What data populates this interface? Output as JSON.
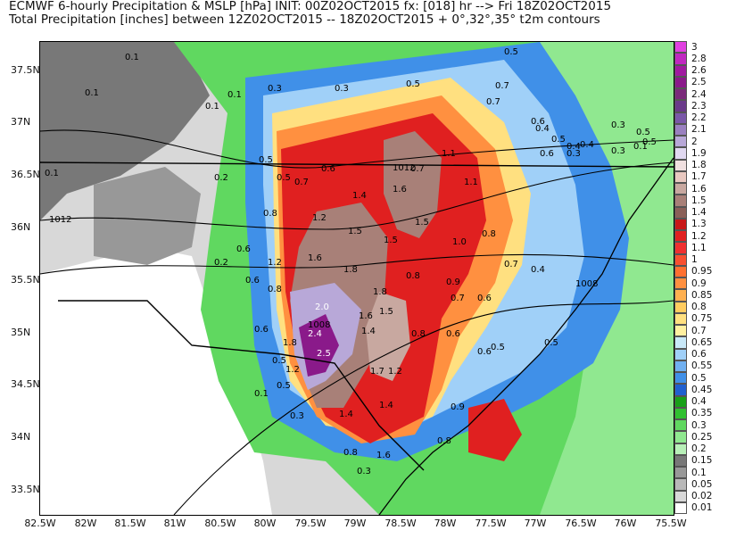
{
  "header": {
    "line1": "ECMWF 6-hourly Precipitation & MSLP [hPa] INIT: 00Z02OCT2015 fx: [018] hr --> Fri 18Z02OCT2015",
    "line2": "Total Precipitation [inches] between 12Z02OCT2015 -- 18Z02OCT2015   + 0°,32°,35° t2m contours"
  },
  "axes": {
    "lat_labels": [
      "37.5N",
      "37N",
      "36.5N",
      "36N",
      "35.5N",
      "35N",
      "34.5N",
      "34N",
      "33.5N"
    ],
    "lon_labels": [
      "82.5W",
      "82W",
      "81.5W",
      "81W",
      "80.5W",
      "80W",
      "79.5W",
      "79W",
      "78.5W",
      "78W",
      "77.5W",
      "77W",
      "76.5W",
      "76W",
      "75.5W"
    ]
  },
  "colorbar": {
    "labels": [
      "3",
      "2.8",
      "2.6",
      "2.5",
      "2.4",
      "2.3",
      "2.2",
      "2.1",
      "2",
      "1.9",
      "1.8",
      "1.7",
      "1.6",
      "1.5",
      "1.4",
      "1.3",
      "1.2",
      "1.1",
      "1",
      "0.95",
      "0.9",
      "0.85",
      "0.8",
      "0.75",
      "0.7",
      "0.65",
      "0.6",
      "0.55",
      "0.5",
      "0.45",
      "0.4",
      "0.35",
      "0.3",
      "0.25",
      "0.2",
      "0.15",
      "0.1",
      "0.05",
      "0.02",
      "0.01"
    ],
    "colors": [
      "#e040e0",
      "#c028c0",
      "#a01aa0",
      "#8a1a8a",
      "#7a2a7a",
      "#6a3a8a",
      "#7a58a8",
      "#9a80c0",
      "#b8a8d8",
      "#e0d8f0",
      "#f0e0e0",
      "#e8c8c0",
      "#c8a8a0",
      "#a88078",
      "#8a6058",
      "#c81818",
      "#e02020",
      "#f03030",
      "#f85030",
      "#ff7030",
      "#ff9040",
      "#ffb050",
      "#ffcc60",
      "#ffe080",
      "#fff0a0",
      "#c8e8f8",
      "#a0d0f8",
      "#70b0f0",
      "#4090e8",
      "#2060d0",
      "#18a018",
      "#30c030",
      "#60d860",
      "#90e890",
      "#b8f0b8",
      "#787878",
      "#989898",
      "#b8b8b8",
      "#d8d8d8",
      "#ffffff"
    ]
  },
  "contour_labels": [
    {
      "t": "0.1"
    },
    {
      "t": "0.1"
    },
    {
      "t": "0.1"
    },
    {
      "t": "0.1"
    },
    {
      "t": "0.1"
    },
    {
      "t": "0.3"
    },
    {
      "t": "0.3"
    },
    {
      "t": "0.5"
    },
    {
      "t": "0.7"
    },
    {
      "t": "0.5"
    },
    {
      "t": "0.6"
    },
    {
      "t": "0.7"
    },
    {
      "t": "0.5"
    },
    {
      "t": "0.6"
    },
    {
      "t": "0.7"
    },
    {
      "t": "0.6"
    },
    {
      "t": "0.4"
    },
    {
      "t": "0.3"
    },
    {
      "t": "0.2"
    },
    {
      "t": "0.5"
    },
    {
      "t": "0.7"
    },
    {
      "t": "1012"
    },
    {
      "t": "1.1"
    },
    {
      "t": "1.6"
    },
    {
      "t": "1.4"
    },
    {
      "t": "1.2"
    },
    {
      "t": "1.5"
    },
    {
      "t": "1.5"
    },
    {
      "t": "1.5"
    },
    {
      "t": "1.0"
    },
    {
      "t": "0.8"
    },
    {
      "t": "0.7"
    },
    {
      "t": "1.1"
    },
    {
      "t": "0.8"
    },
    {
      "t": "0.6"
    },
    {
      "t": "1012"
    },
    {
      "t": "0.2"
    },
    {
      "t": "0.6"
    },
    {
      "t": "0.8"
    },
    {
      "t": "1.2"
    },
    {
      "t": "1.6"
    },
    {
      "t": "1.8"
    },
    {
      "t": "1.8"
    },
    {
      "t": "0.8"
    },
    {
      "t": "0.9"
    },
    {
      "t": "0.7"
    },
    {
      "t": "0.6"
    },
    {
      "t": "0.4"
    },
    {
      "t": "1008"
    },
    {
      "t": "2.0"
    },
    {
      "t": "1.6"
    },
    {
      "t": "1.5"
    },
    {
      "t": "1008"
    },
    {
      "t": "2.4"
    },
    {
      "t": "1.8"
    },
    {
      "t": "1.4"
    },
    {
      "t": "0.8"
    },
    {
      "t": "0.6"
    },
    {
      "t": "0.6"
    },
    {
      "t": "0.5"
    },
    {
      "t": "2.5"
    },
    {
      "t": "1.7"
    },
    {
      "t": "1.2"
    },
    {
      "t": "0.6"
    },
    {
      "t": "0.5"
    },
    {
      "t": "0.5"
    },
    {
      "t": "0.1"
    },
    {
      "t": "0.5"
    },
    {
      "t": "1.2"
    },
    {
      "t": "1.4"
    },
    {
      "t": "0.9"
    },
    {
      "t": "0.3"
    },
    {
      "t": "1.4"
    },
    {
      "t": "0.8"
    },
    {
      "t": "0.8"
    },
    {
      "t": "1.6"
    },
    {
      "t": "0.3"
    },
    {
      "t": "0.1"
    },
    {
      "t": "0.5"
    },
    {
      "t": "0.3"
    },
    {
      "t": "0.4"
    },
    {
      "t": "0.3"
    },
    {
      "t": "0.5"
    },
    {
      "t": "0.4"
    },
    {
      "t": "0.5"
    }
  ]
}
